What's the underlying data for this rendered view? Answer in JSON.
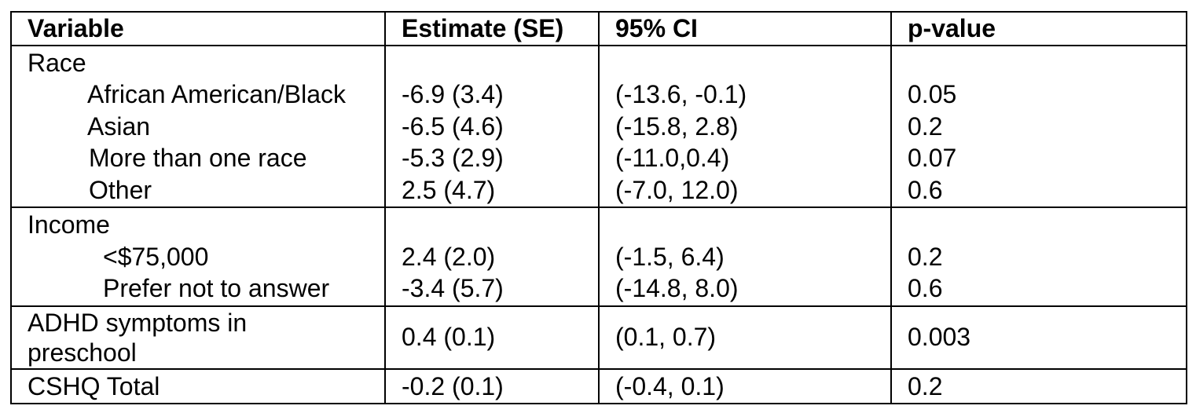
{
  "table": {
    "headers": [
      "Variable",
      "Estimate (SE)",
      "95% CI",
      "p-value"
    ],
    "race": {
      "label": "Race",
      "rows": [
        {
          "variable": "African American/Black",
          "estimate": "-6.9 (3.4)",
          "ci": "(-13.6, -0.1)",
          "p": "0.05"
        },
        {
          "variable": "Asian",
          "estimate": "-6.5 (4.6)",
          "ci": "(-15.8, 2.8)",
          "p": "0.2"
        },
        {
          "variable": "More than one race",
          "estimate": "-5.3 (2.9)",
          "ci": "(-11.0,0.4)",
          "p": "0.07"
        },
        {
          "variable": "Other",
          "estimate": "2.5 (4.7)",
          "ci": "(-7.0, 12.0)",
          "p": "0.6"
        }
      ]
    },
    "income": {
      "label": "Income",
      "rows": [
        {
          "variable": "<$75,000",
          "estimate": "2.4 (2.0)",
          "ci": "(-1.5, 6.4)",
          "p": "0.2"
        },
        {
          "variable": "Prefer not to answer",
          "estimate": "-3.4 (5.7)",
          "ci": "(-14.8, 8.0)",
          "p": "0.6"
        }
      ]
    },
    "adhd": {
      "variable": "ADHD symptoms in preschool",
      "estimate": "0.4 (0.1)",
      "ci": "(0.1, 0.7)",
      "p": "0.003"
    },
    "cshq": {
      "variable": "CSHQ Total",
      "estimate": "-0.2 (0.1)",
      "ci": "(-0.4, 0.1)",
      "p": "0.2"
    }
  }
}
